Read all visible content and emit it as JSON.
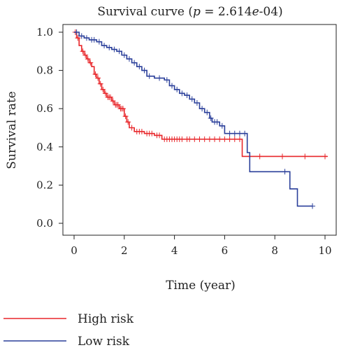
{
  "chart_data": {
    "type": "line",
    "title_prefix": "Survival curve (",
    "title_p": "p",
    "title_middle": " = 2.614",
    "title_e": "e",
    "title_suffix": "-04)",
    "xlabel": "Time (year)",
    "ylabel": "Survival rate",
    "xlim": [
      0,
      10
    ],
    "ylim": [
      0,
      1
    ],
    "x_ticks": [
      "0",
      "2",
      "4",
      "6",
      "8",
      "10"
    ],
    "y_ticks": [
      "0.0",
      "0.2",
      "0.4",
      "0.6",
      "0.8",
      "1.0"
    ],
    "grid": false,
    "legend_position": "bottom-left",
    "series": [
      {
        "name": "High risk",
        "color": "#e8262a",
        "steps": [
          [
            0,
            1.0
          ],
          [
            0.1,
            0.97
          ],
          [
            0.2,
            0.93
          ],
          [
            0.3,
            0.9
          ],
          [
            0.4,
            0.88
          ],
          [
            0.5,
            0.86
          ],
          [
            0.6,
            0.84
          ],
          [
            0.7,
            0.82
          ],
          [
            0.8,
            0.78
          ],
          [
            0.9,
            0.76
          ],
          [
            1.0,
            0.73
          ],
          [
            1.1,
            0.7
          ],
          [
            1.2,
            0.68
          ],
          [
            1.3,
            0.66
          ],
          [
            1.5,
            0.64
          ],
          [
            1.6,
            0.62
          ],
          [
            1.8,
            0.6
          ],
          [
            2.0,
            0.56
          ],
          [
            2.1,
            0.53
          ],
          [
            2.2,
            0.5
          ],
          [
            2.4,
            0.48
          ],
          [
            2.8,
            0.47
          ],
          [
            3.2,
            0.46
          ],
          [
            3.5,
            0.44
          ],
          [
            6.7,
            0.35
          ],
          [
            10.1,
            0.35
          ]
        ],
        "censor_x": [
          0.05,
          0.15,
          0.35,
          0.45,
          0.55,
          0.65,
          0.85,
          0.95,
          1.05,
          1.15,
          1.25,
          1.35,
          1.4,
          1.45,
          1.55,
          1.65,
          1.7,
          1.75,
          1.85,
          1.9,
          1.95,
          2.05,
          2.15,
          2.3,
          2.5,
          2.6,
          2.7,
          2.9,
          3.0,
          3.1,
          3.3,
          3.4,
          3.6,
          3.7,
          3.8,
          3.9,
          4.0,
          4.1,
          4.2,
          4.3,
          4.5,
          4.6,
          4.8,
          5.0,
          5.2,
          5.4,
          5.6,
          5.8,
          6.0,
          6.2,
          6.4,
          6.6,
          7.4,
          8.3,
          9.2,
          10.0
        ]
      },
      {
        "name": "Low risk",
        "color": "#2a3f9a",
        "steps": [
          [
            0,
            1.0
          ],
          [
            0.2,
            0.98
          ],
          [
            0.4,
            0.97
          ],
          [
            0.6,
            0.96
          ],
          [
            0.9,
            0.95
          ],
          [
            1.1,
            0.93
          ],
          [
            1.3,
            0.92
          ],
          [
            1.5,
            0.91
          ],
          [
            1.7,
            0.9
          ],
          [
            1.9,
            0.88
          ],
          [
            2.1,
            0.86
          ],
          [
            2.3,
            0.84
          ],
          [
            2.5,
            0.82
          ],
          [
            2.7,
            0.8
          ],
          [
            2.9,
            0.77
          ],
          [
            3.2,
            0.76
          ],
          [
            3.6,
            0.75
          ],
          [
            3.8,
            0.72
          ],
          [
            4.0,
            0.7
          ],
          [
            4.2,
            0.68
          ],
          [
            4.4,
            0.67
          ],
          [
            4.6,
            0.65
          ],
          [
            4.8,
            0.63
          ],
          [
            5.0,
            0.6
          ],
          [
            5.2,
            0.58
          ],
          [
            5.4,
            0.55
          ],
          [
            5.5,
            0.53
          ],
          [
            5.8,
            0.51
          ],
          [
            6.0,
            0.47
          ],
          [
            6.9,
            0.37
          ],
          [
            7.0,
            0.27
          ],
          [
            8.6,
            0.18
          ],
          [
            8.9,
            0.09
          ],
          [
            9.5,
            0.09
          ]
        ],
        "censor_x": [
          0.1,
          0.3,
          0.5,
          0.7,
          0.8,
          1.0,
          1.2,
          1.4,
          1.6,
          1.8,
          2.0,
          2.2,
          2.4,
          2.6,
          2.8,
          3.0,
          3.4,
          3.7,
          3.9,
          4.1,
          4.3,
          4.5,
          4.7,
          4.9,
          5.1,
          5.3,
          5.45,
          5.6,
          5.7,
          5.9,
          6.2,
          6.4,
          6.6,
          6.8,
          8.4,
          9.5
        ]
      }
    ]
  }
}
